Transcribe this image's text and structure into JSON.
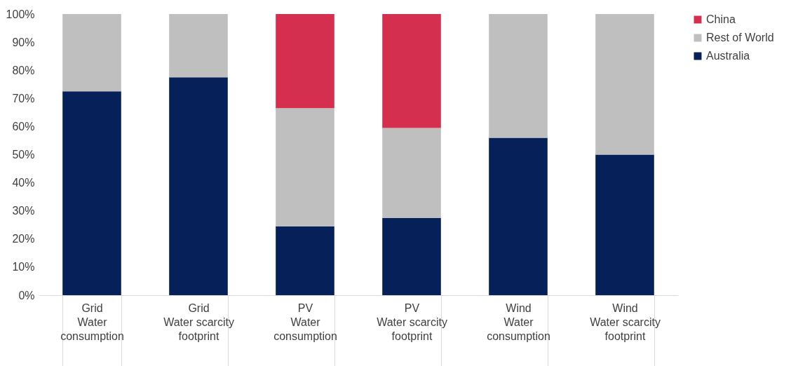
{
  "chart_data": {
    "type": "bar",
    "stacked": true,
    "categories": [
      "Grid\nWater consumption",
      "Grid\nWater scarcity footprint",
      "PV\nWater consumption",
      "PV\nWater scarcity footprint",
      "Wind\nWater consumption",
      "Wind\nWater scarcity footprint"
    ],
    "series": [
      {
        "name": "Australia",
        "color": "#06205a",
        "values": [
          72.5,
          77.5,
          24.5,
          27.5,
          56,
          50
        ]
      },
      {
        "name": "Rest of World",
        "color": "#bfbfbf",
        "values": [
          27.5,
          22.5,
          42,
          32,
          44,
          50
        ]
      },
      {
        "name": "China",
        "color": "#d42f4f",
        "values": [
          null,
          null,
          33.5,
          40.5,
          null,
          null
        ]
      }
    ],
    "ylim": [
      0,
      100
    ],
    "yticks": [
      {
        "value": 0,
        "label": "0%"
      },
      {
        "value": 10,
        "label": "10%"
      },
      {
        "value": 20,
        "label": "20%"
      },
      {
        "value": 30,
        "label": "30%"
      },
      {
        "value": 40,
        "label": "40%"
      },
      {
        "value": 50,
        "label": "50%"
      },
      {
        "value": 60,
        "label": "60%"
      },
      {
        "value": 70,
        "label": "70%"
      },
      {
        "value": 80,
        "label": "80%"
      },
      {
        "value": 90,
        "label": "90%"
      },
      {
        "value": 100,
        "label": "100%"
      }
    ],
    "grid": false,
    "legend": "right"
  }
}
